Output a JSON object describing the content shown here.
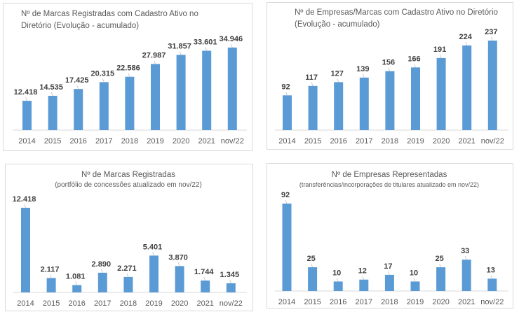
{
  "colors": {
    "bar": "#5b9bd5",
    "axis": "#d9d9d9",
    "text": "#595959",
    "label": "#404040"
  },
  "chart_data": [
    {
      "type": "bar",
      "title": "Nº de Marcas Registradas com Cadastro Ativo no Diretório (Evolução - acumulado)",
      "title_lines": [
        "Nº de Marcas Registradas com Cadastro Ativo no",
        "Diretório (Evolução - acumulado)"
      ],
      "categories": [
        "2014",
        "2015",
        "2016",
        "2017",
        "2018",
        "2019",
        "2020",
        "2021",
        "nov/22"
      ],
      "values": [
        12418,
        14535,
        17425,
        20315,
        22586,
        27987,
        31857,
        33601,
        34946
      ],
      "labels": [
        "12.418",
        "14.535",
        "17.425",
        "20.315",
        "22.586",
        "27.987",
        "31.857",
        "33.601",
        "34.946"
      ],
      "xlabel": "",
      "ylabel": "",
      "grid": false
    },
    {
      "type": "bar",
      "title": "Nº de Empresas/Marcas com Cadastro Ativo no Diretório (Evolução - acumulado)",
      "title_lines": [
        "Nº de Empresas/Marcas com Cadastro Ativo no Diretório",
        "(Evolução -  acumulado)"
      ],
      "categories": [
        "2014",
        "2015",
        "2016",
        "2017",
        "2018",
        "2019",
        "2020",
        "2021",
        "nov/22"
      ],
      "values": [
        92,
        117,
        127,
        139,
        156,
        166,
        191,
        224,
        237
      ],
      "labels": [
        "92",
        "117",
        "127",
        "139",
        "156",
        "166",
        "191",
        "224",
        "237"
      ],
      "xlabel": "",
      "ylabel": "",
      "grid": false
    },
    {
      "type": "bar",
      "title": "Nº de Marcas Registradas",
      "subtitle": "(portfólio de concessões atualizado em nov/22)",
      "categories": [
        "2014",
        "2015",
        "2016",
        "2017",
        "2018",
        "2019",
        "2020",
        "2021",
        "nov/22"
      ],
      "values": [
        12418,
        2117,
        1081,
        2890,
        2271,
        5401,
        3870,
        1744,
        1345
      ],
      "labels": [
        "12.418",
        "2.117",
        "1.081",
        "2.890",
        "2.271",
        "5.401",
        "3.870",
        "1.744",
        "1.345"
      ],
      "xlabel": "",
      "ylabel": "",
      "grid": false
    },
    {
      "type": "bar",
      "title": "Nº de Empresas Representadas",
      "subtitle": "(transferências/incorporações de titulares atualizado em nov/22)",
      "categories": [
        "2014",
        "2015",
        "2016",
        "2017",
        "2018",
        "2019",
        "2020",
        "2021",
        "nov/22"
      ],
      "values": [
        92,
        25,
        10,
        12,
        17,
        10,
        25,
        33,
        13
      ],
      "labels": [
        "92",
        "25",
        "10",
        "12",
        "17",
        "10",
        "25",
        "33",
        "13"
      ],
      "xlabel": "",
      "ylabel": "",
      "grid": false
    }
  ]
}
